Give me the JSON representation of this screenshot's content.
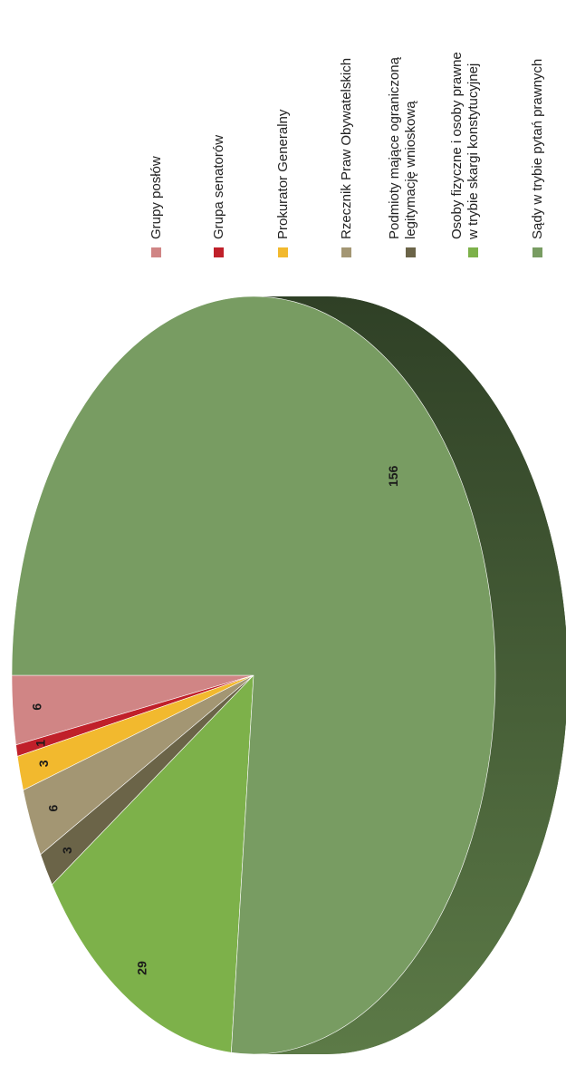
{
  "chart_data": {
    "type": "pie",
    "title": "",
    "style": "3d",
    "orientation": "rotated-90",
    "legend_position": "right",
    "categories": [
      "Grupy posłów",
      "Grupa senatorów",
      "Prokurator Generalny",
      "Rzecznik Praw Obywatelskich",
      "Podmioty mające ograniczoną legitymację wnioskową",
      "Osoby fizyczne i osoby prawne w trybie skargi konstytucyjnej",
      "Sądy w trybie pytań prawnych"
    ],
    "values": [
      6,
      1,
      3,
      6,
      3,
      29,
      156
    ],
    "data_labels": [
      "6",
      "1",
      "3",
      "6",
      "3",
      "29",
      "156"
    ],
    "legend_lines": [
      [
        "Grupy posłów"
      ],
      [
        "Grupa senatorów"
      ],
      [
        "Prokurator Generalny"
      ],
      [
        "Rzecznik Praw Obywatelskich"
      ],
      [
        "Podmioty mające ograniczoną",
        "legitymację wnioskową"
      ],
      [
        "Osoby fizyczne i osoby prawne",
        "w trybie skargi konstytucyjnej"
      ],
      [
        "Sądy w trybie pytań prawnych"
      ]
    ],
    "colors": [
      "#d08585",
      "#c0202a",
      "#f2b92e",
      "#a39673",
      "#6b6448",
      "#7db14a",
      "#789c62"
    ],
    "side_color_dark": "#2f4026",
    "side_color_light": "#5c7a47"
  }
}
